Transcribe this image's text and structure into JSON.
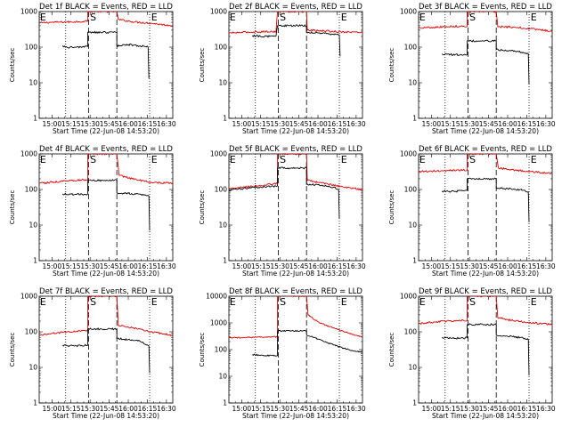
{
  "chart_data": {
    "type": "line",
    "layout": "3x3 grid",
    "scale": "log",
    "ylim": [
      1,
      1000
    ],
    "x_range_hours": [
      14.833,
      16.583
    ],
    "x_ticks": [
      "15:00",
      "15:15",
      "15:30",
      "15:45",
      "16:00",
      "16:15",
      "16:30"
    ],
    "xlabel": "Start Time (22-Jun-08 14:53:20)",
    "ylabel": "Counts/sec",
    "colors": {
      "events": "#000000",
      "lld": "#e00000"
    },
    "markers": {
      "dotted_vertical_lines": [
        15.18,
        16.28
      ],
      "dashed_vertical_lines": [
        15.48,
        15.85
      ]
    },
    "panels": [
      {
        "title": "Det 1f BLACK = Events, RED = LLD",
        "ymax": 1000,
        "y_ticks": [
          "1",
          "10",
          "100",
          "1000"
        ],
        "marks": [
          "E",
          "S",
          "E"
        ],
        "events": [
          [
            15.14,
            110
          ],
          [
            15.2,
            98
          ],
          [
            15.3,
            100
          ],
          [
            15.4,
            102
          ],
          [
            15.47,
            105
          ],
          [
            15.47,
            260
          ],
          [
            15.85,
            260
          ],
          [
            15.85,
            110
          ],
          [
            16.0,
            118
          ],
          [
            16.2,
            106
          ],
          [
            16.26,
            100
          ],
          [
            16.27,
            13
          ]
        ],
        "lld": [
          [
            14.84,
            480
          ],
          [
            15.0,
            500
          ],
          [
            15.2,
            510
          ],
          [
            15.35,
            520
          ],
          [
            15.47,
            540
          ],
          [
            15.47,
            1000
          ],
          [
            15.85,
            1000
          ],
          [
            15.87,
            600
          ],
          [
            16.05,
            520
          ],
          [
            16.3,
            470
          ],
          [
            16.58,
            400
          ]
        ]
      },
      {
        "title": "Det 2f BLACK = Events, RED = LLD",
        "ymax": 1000,
        "y_ticks": [
          "1",
          "10",
          "100",
          "1000"
        ],
        "marks": [
          "E",
          "S",
          "E"
        ],
        "events": [
          [
            15.14,
            210
          ],
          [
            15.3,
            200
          ],
          [
            15.45,
            205
          ],
          [
            15.47,
            400
          ],
          [
            15.85,
            400
          ],
          [
            15.85,
            260
          ],
          [
            16.0,
            250
          ],
          [
            16.2,
            230
          ],
          [
            16.28,
            220
          ],
          [
            16.29,
            55
          ]
        ],
        "lld": [
          [
            14.84,
            250
          ],
          [
            15.0,
            260
          ],
          [
            15.2,
            270
          ],
          [
            15.45,
            275
          ],
          [
            15.47,
            1000
          ],
          [
            15.85,
            1000
          ],
          [
            15.86,
            300
          ],
          [
            16.0,
            290
          ],
          [
            16.3,
            270
          ],
          [
            16.58,
            260
          ]
        ]
      },
      {
        "title": "Det 3f BLACK = Events, RED = LLD",
        "ymax": 1000,
        "y_ticks": [
          "1",
          "10",
          "100",
          "1000"
        ],
        "marks": [
          "E",
          "S",
          "E"
        ],
        "events": [
          [
            15.14,
            65
          ],
          [
            15.25,
            62
          ],
          [
            15.4,
            60
          ],
          [
            15.47,
            62
          ],
          [
            15.47,
            150
          ],
          [
            15.85,
            150
          ],
          [
            15.85,
            85
          ],
          [
            16.0,
            80
          ],
          [
            16.2,
            72
          ],
          [
            16.27,
            65
          ],
          [
            16.28,
            9
          ]
        ],
        "lld": [
          [
            14.84,
            350
          ],
          [
            15.0,
            360
          ],
          [
            15.2,
            380
          ],
          [
            15.47,
            390
          ],
          [
            15.47,
            1000
          ],
          [
            15.85,
            1000
          ],
          [
            15.87,
            380
          ],
          [
            16.1,
            360
          ],
          [
            16.3,
            330
          ],
          [
            16.58,
            280
          ]
        ]
      },
      {
        "title": "Det 4f BLACK = Events, RED = LLD",
        "ymax": 1000,
        "y_ticks": [
          "1",
          "10",
          "100",
          "1000"
        ],
        "marks": [
          "E",
          "S",
          "E"
        ],
        "events": [
          [
            15.14,
            75
          ],
          [
            15.3,
            72
          ],
          [
            15.47,
            75
          ],
          [
            15.47,
            180
          ],
          [
            15.85,
            180
          ],
          [
            15.85,
            80
          ],
          [
            16.0,
            78
          ],
          [
            16.2,
            70
          ],
          [
            16.27,
            65
          ],
          [
            16.28,
            7
          ]
        ],
        "lld": [
          [
            14.84,
            150
          ],
          [
            15.0,
            160
          ],
          [
            15.2,
            175
          ],
          [
            15.47,
            190
          ],
          [
            15.47,
            1000
          ],
          [
            15.85,
            1000
          ],
          [
            15.88,
            250
          ],
          [
            16.05,
            200
          ],
          [
            16.3,
            160
          ],
          [
            16.58,
            150
          ]
        ]
      },
      {
        "title": "Det 5f BLACK = Events, RED = LLD",
        "ymax": 1000,
        "y_ticks": [
          "1",
          "10",
          "100",
          "1000"
        ],
        "marks": [
          "E",
          "S",
          "E"
        ],
        "events": [
          [
            14.84,
            95
          ],
          [
            15.0,
            105
          ],
          [
            15.2,
            115
          ],
          [
            15.47,
            125
          ],
          [
            15.47,
            400
          ],
          [
            15.85,
            400
          ],
          [
            15.85,
            140
          ],
          [
            16.0,
            135
          ],
          [
            16.2,
            115
          ],
          [
            16.27,
            100
          ],
          [
            16.28,
            15
          ]
        ],
        "lld": [
          [
            14.84,
            105
          ],
          [
            15.0,
            115
          ],
          [
            15.2,
            125
          ],
          [
            15.47,
            150
          ],
          [
            15.47,
            1000
          ],
          [
            15.85,
            1000
          ],
          [
            15.86,
            180
          ],
          [
            16.0,
            160
          ],
          [
            16.3,
            120
          ],
          [
            16.58,
            100
          ]
        ]
      },
      {
        "title": "Det 6f BLACK = Events, RED = LLD",
        "ymax": 1000,
        "y_ticks": [
          "1",
          "10",
          "100",
          "1000"
        ],
        "marks": [
          "E",
          "S",
          "E"
        ],
        "events": [
          [
            15.14,
            90
          ],
          [
            15.3,
            88
          ],
          [
            15.47,
            95
          ],
          [
            15.47,
            200
          ],
          [
            15.85,
            200
          ],
          [
            15.85,
            110
          ],
          [
            16.0,
            105
          ],
          [
            16.2,
            95
          ],
          [
            16.27,
            85
          ],
          [
            16.28,
            12
          ]
        ],
        "lld": [
          [
            14.84,
            320
          ],
          [
            15.0,
            330
          ],
          [
            15.2,
            340
          ],
          [
            15.47,
            350
          ],
          [
            15.47,
            1000
          ],
          [
            15.85,
            1000
          ],
          [
            15.88,
            400
          ],
          [
            16.1,
            350
          ],
          [
            16.3,
            320
          ],
          [
            16.58,
            280
          ]
        ]
      },
      {
        "title": "Det 7f BLACK = Events, RED = LLD",
        "ymax": 1000,
        "y_ticks": [
          "1",
          "10",
          "100",
          "1000"
        ],
        "marks": [
          "E",
          "S",
          "E"
        ],
        "events": [
          [
            15.14,
            42
          ],
          [
            15.3,
            40
          ],
          [
            15.47,
            42
          ],
          [
            15.47,
            120
          ],
          [
            15.85,
            120
          ],
          [
            15.85,
            65
          ],
          [
            16.0,
            60
          ],
          [
            16.15,
            55
          ],
          [
            16.27,
            40
          ],
          [
            16.28,
            7
          ]
        ],
        "lld": [
          [
            14.84,
            80
          ],
          [
            15.0,
            90
          ],
          [
            15.2,
            100
          ],
          [
            15.47,
            110
          ],
          [
            15.47,
            1000
          ],
          [
            15.85,
            1000
          ],
          [
            15.87,
            150
          ],
          [
            16.05,
            130
          ],
          [
            16.3,
            100
          ],
          [
            16.58,
            80
          ]
        ]
      },
      {
        "title": "Det 8f BLACK = Events, RED = LLD",
        "ymax": 10000,
        "y_ticks": [
          "1",
          "10",
          "100",
          "1000",
          "10000"
        ],
        "marks": [
          "E",
          "S",
          "E"
        ],
        "events": [
          [
            15.14,
            65
          ],
          [
            15.3,
            60
          ],
          [
            15.47,
            60
          ],
          [
            15.47,
            500
          ],
          [
            15.85,
            500
          ],
          [
            15.85,
            360
          ],
          [
            16.0,
            250
          ],
          [
            16.2,
            150
          ],
          [
            16.4,
            100
          ],
          [
            16.58,
            80
          ]
        ],
        "lld": [
          [
            14.84,
            280
          ],
          [
            15.0,
            280
          ],
          [
            15.2,
            290
          ],
          [
            15.47,
            300
          ],
          [
            15.47,
            10000
          ],
          [
            15.85,
            10000
          ],
          [
            15.87,
            2000
          ],
          [
            16.0,
            1100
          ],
          [
            16.2,
            650
          ],
          [
            16.4,
            420
          ],
          [
            16.58,
            300
          ]
        ]
      },
      {
        "title": "Det 9f BLACK = Events, RED = LLD",
        "ymax": 1000,
        "y_ticks": [
          "1",
          "10",
          "100",
          "1000"
        ],
        "marks": [
          "E",
          "S",
          "E"
        ],
        "events": [
          [
            15.14,
            70
          ],
          [
            15.3,
            65
          ],
          [
            15.47,
            68
          ],
          [
            15.47,
            160
          ],
          [
            15.85,
            160
          ],
          [
            15.85,
            80
          ],
          [
            16.0,
            75
          ],
          [
            16.2,
            68
          ],
          [
            16.27,
            60
          ],
          [
            16.28,
            6
          ]
        ],
        "lld": [
          [
            14.84,
            170
          ],
          [
            15.0,
            185
          ],
          [
            15.2,
            200
          ],
          [
            15.47,
            210
          ],
          [
            15.47,
            1000
          ],
          [
            15.85,
            1000
          ],
          [
            15.87,
            250
          ],
          [
            16.05,
            210
          ],
          [
            16.3,
            180
          ],
          [
            16.58,
            160
          ]
        ]
      }
    ]
  }
}
